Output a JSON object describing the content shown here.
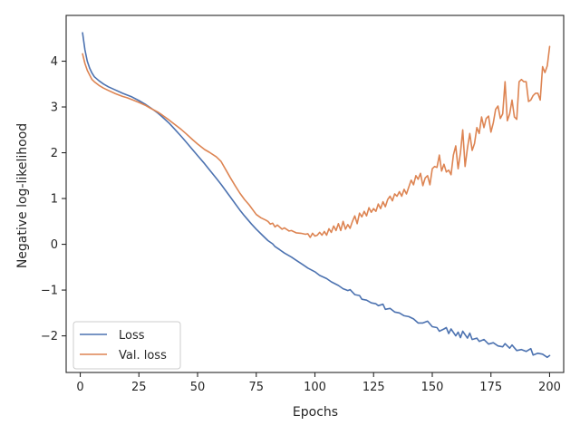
{
  "chart_data": {
    "type": "line",
    "xlabel": "Epochs",
    "ylabel": "Negative log-likelihood",
    "xlim": [
      -6,
      206
    ],
    "ylim": [
      -2.8,
      5.0
    ],
    "xticks": [
      0,
      25,
      50,
      75,
      100,
      125,
      150,
      175,
      200
    ],
    "xtick_labels": [
      "0",
      "25",
      "50",
      "75",
      "100",
      "125",
      "150",
      "175",
      "200"
    ],
    "yticks": [
      -2,
      -1,
      0,
      1,
      2,
      3,
      4
    ],
    "ytick_labels": [
      "−2",
      "−1",
      "0",
      "1",
      "2",
      "3",
      "4"
    ],
    "grid": false,
    "legend_position": "lower-left",
    "series": [
      {
        "name": "Loss",
        "color": "#4c72b0",
        "points": [
          [
            1,
            4.62
          ],
          [
            2,
            4.25
          ],
          [
            3,
            4.0
          ],
          [
            4,
            3.85
          ],
          [
            5,
            3.74
          ],
          [
            6,
            3.66
          ],
          [
            8,
            3.57
          ],
          [
            10,
            3.5
          ],
          [
            12,
            3.44
          ],
          [
            15,
            3.37
          ],
          [
            18,
            3.3
          ],
          [
            20,
            3.26
          ],
          [
            22,
            3.22
          ],
          [
            25,
            3.14
          ],
          [
            28,
            3.05
          ],
          [
            30,
            2.98
          ],
          [
            33,
            2.87
          ],
          [
            35,
            2.78
          ],
          [
            38,
            2.64
          ],
          [
            40,
            2.53
          ],
          [
            43,
            2.36
          ],
          [
            45,
            2.24
          ],
          [
            48,
            2.06
          ],
          [
            50,
            1.94
          ],
          [
            53,
            1.76
          ],
          [
            55,
            1.63
          ],
          [
            58,
            1.44
          ],
          [
            60,
            1.31
          ],
          [
            63,
            1.1
          ],
          [
            65,
            0.96
          ],
          [
            68,
            0.75
          ],
          [
            70,
            0.62
          ],
          [
            73,
            0.44
          ],
          [
            75,
            0.33
          ],
          [
            78,
            0.18
          ],
          [
            80,
            0.08
          ],
          [
            82,
            0.01
          ],
          [
            83,
            -0.05
          ],
          [
            85,
            -0.12
          ],
          [
            87,
            -0.19
          ],
          [
            90,
            -0.28
          ],
          [
            92,
            -0.35
          ],
          [
            95,
            -0.45
          ],
          [
            97,
            -0.52
          ],
          [
            100,
            -0.6
          ],
          [
            102,
            -0.68
          ],
          [
            105,
            -0.75
          ],
          [
            107,
            -0.82
          ],
          [
            110,
            -0.9
          ],
          [
            112,
            -0.97
          ],
          [
            114,
            -1.01
          ],
          [
            115,
            -0.99
          ],
          [
            117,
            -1.1
          ],
          [
            119,
            -1.12
          ],
          [
            120,
            -1.2
          ],
          [
            122,
            -1.22
          ],
          [
            124,
            -1.28
          ],
          [
            126,
            -1.3
          ],
          [
            127,
            -1.34
          ],
          [
            129,
            -1.31
          ],
          [
            130,
            -1.42
          ],
          [
            132,
            -1.4
          ],
          [
            134,
            -1.48
          ],
          [
            136,
            -1.5
          ],
          [
            138,
            -1.56
          ],
          [
            140,
            -1.58
          ],
          [
            142,
            -1.63
          ],
          [
            144,
            -1.72
          ],
          [
            146,
            -1.72
          ],
          [
            148,
            -1.68
          ],
          [
            150,
            -1.8
          ],
          [
            152,
            -1.82
          ],
          [
            153,
            -1.9
          ],
          [
            155,
            -1.85
          ],
          [
            156,
            -1.82
          ],
          [
            157,
            -1.95
          ],
          [
            158,
            -1.85
          ],
          [
            160,
            -2.0
          ],
          [
            161,
            -1.92
          ],
          [
            162,
            -2.04
          ],
          [
            163,
            -1.9
          ],
          [
            165,
            -2.05
          ],
          [
            166,
            -1.94
          ],
          [
            167,
            -2.08
          ],
          [
            169,
            -2.05
          ],
          [
            170,
            -2.12
          ],
          [
            172,
            -2.08
          ],
          [
            174,
            -2.18
          ],
          [
            176,
            -2.15
          ],
          [
            178,
            -2.22
          ],
          [
            180,
            -2.24
          ],
          [
            181,
            -2.17
          ],
          [
            182,
            -2.22
          ],
          [
            183,
            -2.27
          ],
          [
            184,
            -2.2
          ],
          [
            186,
            -2.32
          ],
          [
            188,
            -2.3
          ],
          [
            190,
            -2.34
          ],
          [
            192,
            -2.28
          ],
          [
            193,
            -2.42
          ],
          [
            195,
            -2.38
          ],
          [
            197,
            -2.4
          ],
          [
            199,
            -2.47
          ],
          [
            200,
            -2.43
          ]
        ]
      },
      {
        "name": "Val. loss",
        "color": "#dd8452",
        "points": [
          [
            1,
            4.16
          ],
          [
            2,
            3.95
          ],
          [
            3,
            3.8
          ],
          [
            4,
            3.7
          ],
          [
            5,
            3.6
          ],
          [
            6,
            3.55
          ],
          [
            8,
            3.47
          ],
          [
            10,
            3.41
          ],
          [
            12,
            3.36
          ],
          [
            15,
            3.29
          ],
          [
            18,
            3.23
          ],
          [
            20,
            3.2
          ],
          [
            22,
            3.16
          ],
          [
            25,
            3.1
          ],
          [
            28,
            3.03
          ],
          [
            30,
            2.97
          ],
          [
            33,
            2.89
          ],
          [
            35,
            2.82
          ],
          [
            38,
            2.71
          ],
          [
            40,
            2.63
          ],
          [
            43,
            2.51
          ],
          [
            45,
            2.42
          ],
          [
            48,
            2.28
          ],
          [
            50,
            2.19
          ],
          [
            53,
            2.07
          ],
          [
            55,
            2.01
          ],
          [
            58,
            1.91
          ],
          [
            60,
            1.81
          ],
          [
            62,
            1.63
          ],
          [
            64,
            1.45
          ],
          [
            66,
            1.28
          ],
          [
            68,
            1.12
          ],
          [
            70,
            0.98
          ],
          [
            72,
            0.86
          ],
          [
            74,
            0.72
          ],
          [
            75,
            0.65
          ],
          [
            77,
            0.58
          ],
          [
            79,
            0.53
          ],
          [
            80,
            0.5
          ],
          [
            81,
            0.44
          ],
          [
            82,
            0.46
          ],
          [
            83,
            0.38
          ],
          [
            84,
            0.42
          ],
          [
            86,
            0.33
          ],
          [
            87,
            0.36
          ],
          [
            89,
            0.29
          ],
          [
            90,
            0.3
          ],
          [
            92,
            0.25
          ],
          [
            94,
            0.24
          ],
          [
            96,
            0.22
          ],
          [
            97,
            0.23
          ],
          [
            98,
            0.15
          ],
          [
            99,
            0.24
          ],
          [
            100,
            0.18
          ],
          [
            101,
            0.2
          ],
          [
            102,
            0.26
          ],
          [
            103,
            0.2
          ],
          [
            104,
            0.28
          ],
          [
            105,
            0.2
          ],
          [
            106,
            0.34
          ],
          [
            107,
            0.26
          ],
          [
            108,
            0.4
          ],
          [
            109,
            0.3
          ],
          [
            110,
            0.45
          ],
          [
            111,
            0.3
          ],
          [
            112,
            0.5
          ],
          [
            113,
            0.33
          ],
          [
            114,
            0.43
          ],
          [
            115,
            0.35
          ],
          [
            116,
            0.5
          ],
          [
            117,
            0.62
          ],
          [
            118,
            0.45
          ],
          [
            119,
            0.68
          ],
          [
            120,
            0.6
          ],
          [
            121,
            0.72
          ],
          [
            122,
            0.62
          ],
          [
            123,
            0.8
          ],
          [
            124,
            0.7
          ],
          [
            125,
            0.78
          ],
          [
            126,
            0.72
          ],
          [
            127,
            0.88
          ],
          [
            128,
            0.78
          ],
          [
            129,
            0.93
          ],
          [
            130,
            0.82
          ],
          [
            131,
            0.98
          ],
          [
            132,
            1.05
          ],
          [
            133,
            0.95
          ],
          [
            134,
            1.1
          ],
          [
            135,
            1.05
          ],
          [
            136,
            1.15
          ],
          [
            137,
            1.05
          ],
          [
            138,
            1.2
          ],
          [
            139,
            1.1
          ],
          [
            140,
            1.25
          ],
          [
            141,
            1.4
          ],
          [
            142,
            1.3
          ],
          [
            143,
            1.5
          ],
          [
            144,
            1.42
          ],
          [
            145,
            1.55
          ],
          [
            146,
            1.28
          ],
          [
            147,
            1.45
          ],
          [
            148,
            1.5
          ],
          [
            149,
            1.3
          ],
          [
            150,
            1.65
          ],
          [
            151,
            1.7
          ],
          [
            152,
            1.68
          ],
          [
            153,
            1.95
          ],
          [
            154,
            1.6
          ],
          [
            155,
            1.75
          ],
          [
            156,
            1.58
          ],
          [
            157,
            1.62
          ],
          [
            158,
            1.52
          ],
          [
            159,
            1.95
          ],
          [
            160,
            2.15
          ],
          [
            161,
            1.65
          ],
          [
            162,
            2.0
          ],
          [
            163,
            2.5
          ],
          [
            164,
            1.7
          ],
          [
            165,
            2.1
          ],
          [
            166,
            2.42
          ],
          [
            167,
            2.05
          ],
          [
            168,
            2.2
          ],
          [
            169,
            2.55
          ],
          [
            170,
            2.42
          ],
          [
            171,
            2.78
          ],
          [
            172,
            2.55
          ],
          [
            173,
            2.75
          ],
          [
            174,
            2.8
          ],
          [
            175,
            2.45
          ],
          [
            176,
            2.65
          ],
          [
            177,
            2.95
          ],
          [
            178,
            3.02
          ],
          [
            179,
            2.75
          ],
          [
            180,
            2.85
          ],
          [
            181,
            3.55
          ],
          [
            182,
            2.7
          ],
          [
            183,
            2.85
          ],
          [
            184,
            3.15
          ],
          [
            185,
            2.78
          ],
          [
            186,
            2.73
          ],
          [
            187,
            3.55
          ],
          [
            188,
            3.6
          ],
          [
            189,
            3.55
          ],
          [
            190,
            3.55
          ],
          [
            191,
            3.12
          ],
          [
            192,
            3.15
          ],
          [
            193,
            3.25
          ],
          [
            194,
            3.3
          ],
          [
            195,
            3.3
          ],
          [
            196,
            3.15
          ],
          [
            197,
            3.88
          ],
          [
            198,
            3.75
          ],
          [
            199,
            3.9
          ],
          [
            200,
            4.32
          ]
        ]
      }
    ]
  }
}
